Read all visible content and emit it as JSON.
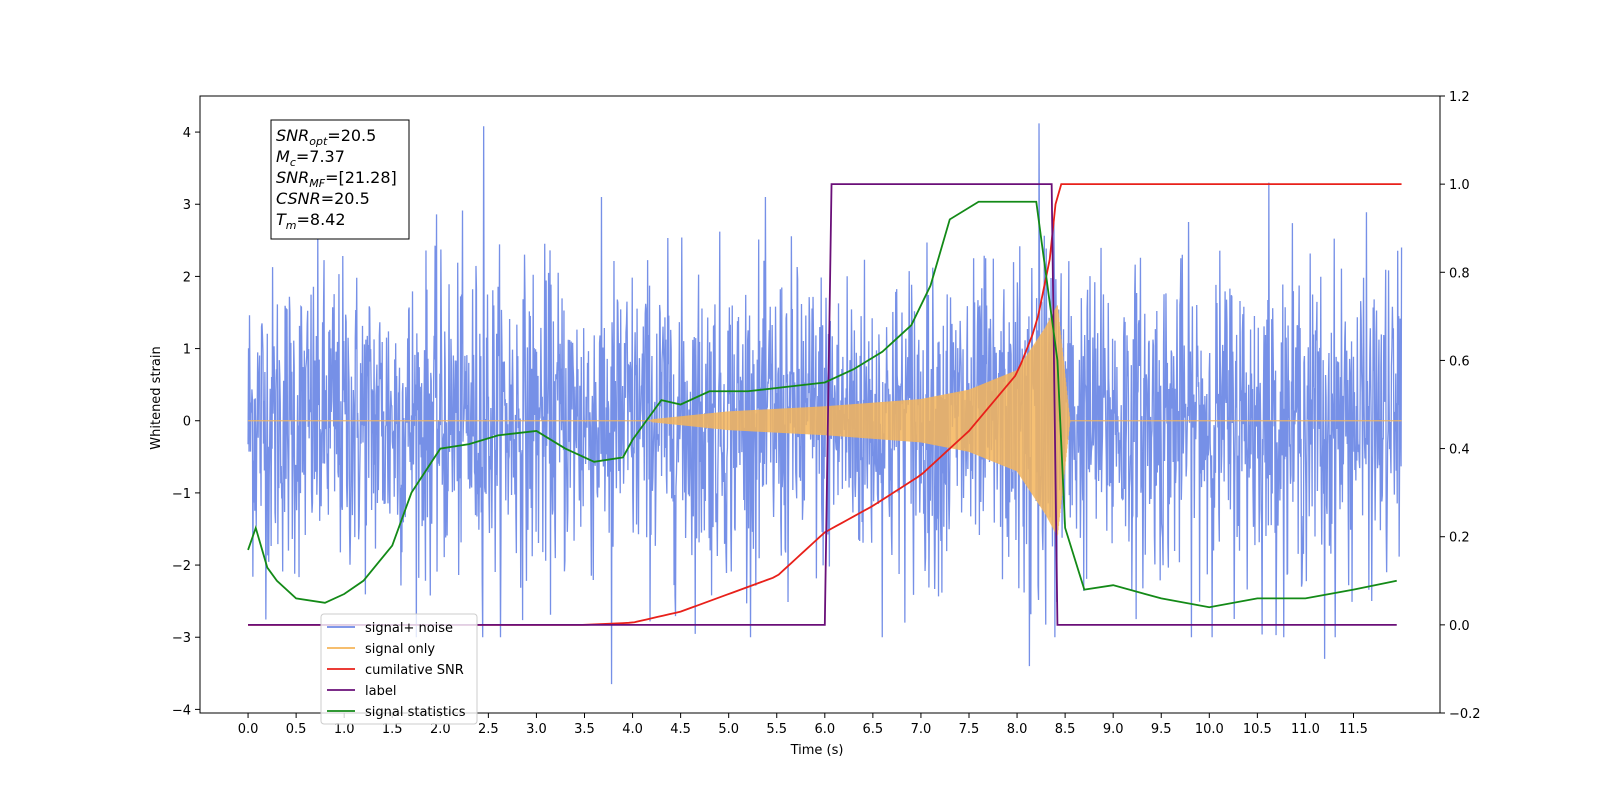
{
  "chart_data": {
    "type": "line",
    "title": "",
    "xlabel": "Time (s)",
    "ylabel": "Whitened strain",
    "y2label": "",
    "xlim": [
      -0.5,
      12.4
    ],
    "ylim": [
      -4.05,
      4.5
    ],
    "y2lim": [
      -0.2,
      1.2
    ],
    "xticks": [
      "0.0",
      "0.5",
      "1.0",
      "1.5",
      "2.0",
      "2.5",
      "3.0",
      "3.5",
      "4.0",
      "4.5",
      "5.0",
      "5.5",
      "6.0",
      "6.5",
      "7.0",
      "7.5",
      "8.0",
      "8.5",
      "9.0",
      "9.5",
      "10.0",
      "10.5",
      "11.0",
      "11.5"
    ],
    "yticks": [
      "−4",
      "−3",
      "−2",
      "−1",
      "0",
      "1",
      "2",
      "3",
      "4"
    ],
    "y2ticks": [
      "−0.2",
      "0.0",
      "0.2",
      "0.4",
      "0.6",
      "0.8",
      "1.0",
      "1.2"
    ],
    "grid": false,
    "legend_position": "lower-left",
    "annotation": {
      "lines": [
        {
          "sym": "SNR",
          "sub": "opt",
          "val": "=20.5"
        },
        {
          "sym": "M",
          "sub": "c",
          "val": "=7.37"
        },
        {
          "sym": "SNR",
          "sub": "MF",
          "val": "=[21.28]"
        },
        {
          "sym": "CSNR",
          "sub": "",
          "val": "=20.5"
        },
        {
          "sym": "T",
          "sub": "m",
          "val": "=8.42"
        }
      ]
    },
    "series": [
      {
        "name": "signal+ noise",
        "axis": "left",
        "color": "#6f8ae6",
        "kind": "noise",
        "t_range": [
          0.0,
          12.0
        ],
        "sigma": 1.0,
        "signal_start": 4.2,
        "signal_end": 8.42,
        "peaks": [
          [
            2.45,
            4.08
          ],
          [
            8.23,
            4.12
          ],
          [
            10.62,
            3.3
          ],
          [
            3.78,
            -3.65
          ],
          [
            8.13,
            -3.4
          ],
          [
            11.2,
            -3.3
          ],
          [
            12.0,
            2.4
          ]
        ]
      },
      {
        "name": "signal only",
        "axis": "left",
        "color": "#f5b55a",
        "kind": "chirp",
        "t_start": 4.2,
        "t_merge": 8.42,
        "t_end": 8.55,
        "amplitude": [
          [
            4.2,
            0.02
          ],
          [
            5.0,
            0.13
          ],
          [
            6.0,
            0.2
          ],
          [
            7.0,
            0.3
          ],
          [
            7.5,
            0.43
          ],
          [
            8.0,
            0.7
          ],
          [
            8.3,
            1.3
          ],
          [
            8.42,
            1.6
          ]
        ]
      },
      {
        "name": "cumilative SNR",
        "axis": "right",
        "color": "#e8201a",
        "kind": "line",
        "points": [
          [
            0.0,
            0.0
          ],
          [
            3.5,
            0.0
          ],
          [
            4.0,
            0.005
          ],
          [
            4.5,
            0.03
          ],
          [
            5.0,
            0.07
          ],
          [
            5.5,
            0.11
          ],
          [
            6.0,
            0.21
          ],
          [
            6.5,
            0.27
          ],
          [
            7.0,
            0.34
          ],
          [
            7.5,
            0.44
          ],
          [
            8.0,
            0.57
          ],
          [
            8.2,
            0.68
          ],
          [
            8.35,
            0.84
          ],
          [
            8.42,
            1.0
          ],
          [
            12.0,
            1.0
          ]
        ]
      },
      {
        "name": "label",
        "axis": "right",
        "color": "#6a0f78",
        "kind": "line",
        "points": [
          [
            0.0,
            0.0
          ],
          [
            6.0,
            0.0
          ],
          [
            6.07,
            1.0
          ],
          [
            8.36,
            1.0
          ],
          [
            8.42,
            0.0
          ],
          [
            11.95,
            0.0
          ]
        ]
      },
      {
        "name": "signal statistics",
        "axis": "right",
        "color": "#138a17",
        "kind": "line",
        "points": [
          [
            0.0,
            0.17
          ],
          [
            0.08,
            0.22
          ],
          [
            0.2,
            0.13
          ],
          [
            0.3,
            0.1
          ],
          [
            0.5,
            0.06
          ],
          [
            0.8,
            0.05
          ],
          [
            1.0,
            0.07
          ],
          [
            1.2,
            0.1
          ],
          [
            1.5,
            0.18
          ],
          [
            1.7,
            0.3
          ],
          [
            2.0,
            0.4
          ],
          [
            2.3,
            0.41
          ],
          [
            2.6,
            0.43
          ],
          [
            3.0,
            0.44
          ],
          [
            3.3,
            0.4
          ],
          [
            3.6,
            0.37
          ],
          [
            3.9,
            0.38
          ],
          [
            4.0,
            0.42
          ],
          [
            4.3,
            0.51
          ],
          [
            4.5,
            0.5
          ],
          [
            4.8,
            0.53
          ],
          [
            5.2,
            0.53
          ],
          [
            5.6,
            0.54
          ],
          [
            6.0,
            0.55
          ],
          [
            6.3,
            0.58
          ],
          [
            6.6,
            0.62
          ],
          [
            6.9,
            0.68
          ],
          [
            7.1,
            0.77
          ],
          [
            7.3,
            0.92
          ],
          [
            7.6,
            0.96
          ],
          [
            7.9,
            0.96
          ],
          [
            8.2,
            0.96
          ],
          [
            8.42,
            0.6
          ],
          [
            8.5,
            0.22
          ],
          [
            8.7,
            0.08
          ],
          [
            9.0,
            0.09
          ],
          [
            9.5,
            0.06
          ],
          [
            10.0,
            0.04
          ],
          [
            10.5,
            0.06
          ],
          [
            11.0,
            0.06
          ],
          [
            11.5,
            0.08
          ],
          [
            11.95,
            0.1
          ]
        ]
      }
    ]
  }
}
